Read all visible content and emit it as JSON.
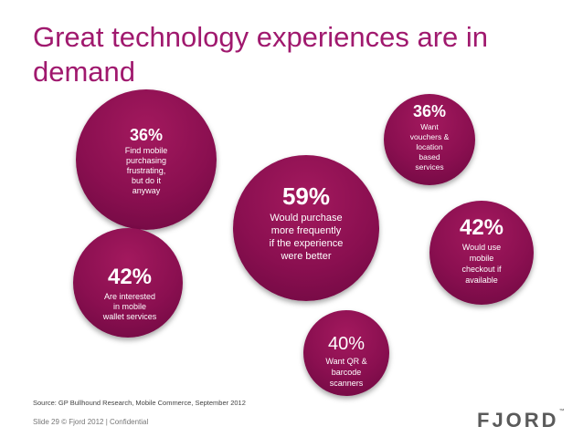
{
  "slide": {
    "title": "Great technology experiences are in demand",
    "source": "Source: GP Bullhound Research, Mobile Commerce, September 2012",
    "footer": "Slide 29 © Fjord 2012 | Confidential",
    "logo": "FJORD",
    "logo_mark": "™"
  },
  "colors": {
    "bubble": "#8a0f50",
    "title": "#a0196e"
  },
  "chart_data": {
    "type": "bubble",
    "title": "Great technology experiences are in demand",
    "bubbles": [
      {
        "value": 36,
        "label": "36%",
        "text": "Find mobile\npurchasing\nfrustrating,\nbut do it\nanyway"
      },
      {
        "value": 36,
        "label": "36%",
        "text": "Want\nvouchers &\nlocation\nbased\nservices"
      },
      {
        "value": 59,
        "label": "59%",
        "text": "Would purchase\nmore frequently\nif the experience\nwere better"
      },
      {
        "value": 42,
        "label": "42%",
        "text": "Would use\nmobile\ncheckout if\navailable"
      },
      {
        "value": 42,
        "label": "42%",
        "text": "Are interested\nin mobile\nwallet services"
      },
      {
        "value": 40,
        "label": "40%",
        "text": "Want QR &\nbarcode\nscanners"
      }
    ]
  }
}
